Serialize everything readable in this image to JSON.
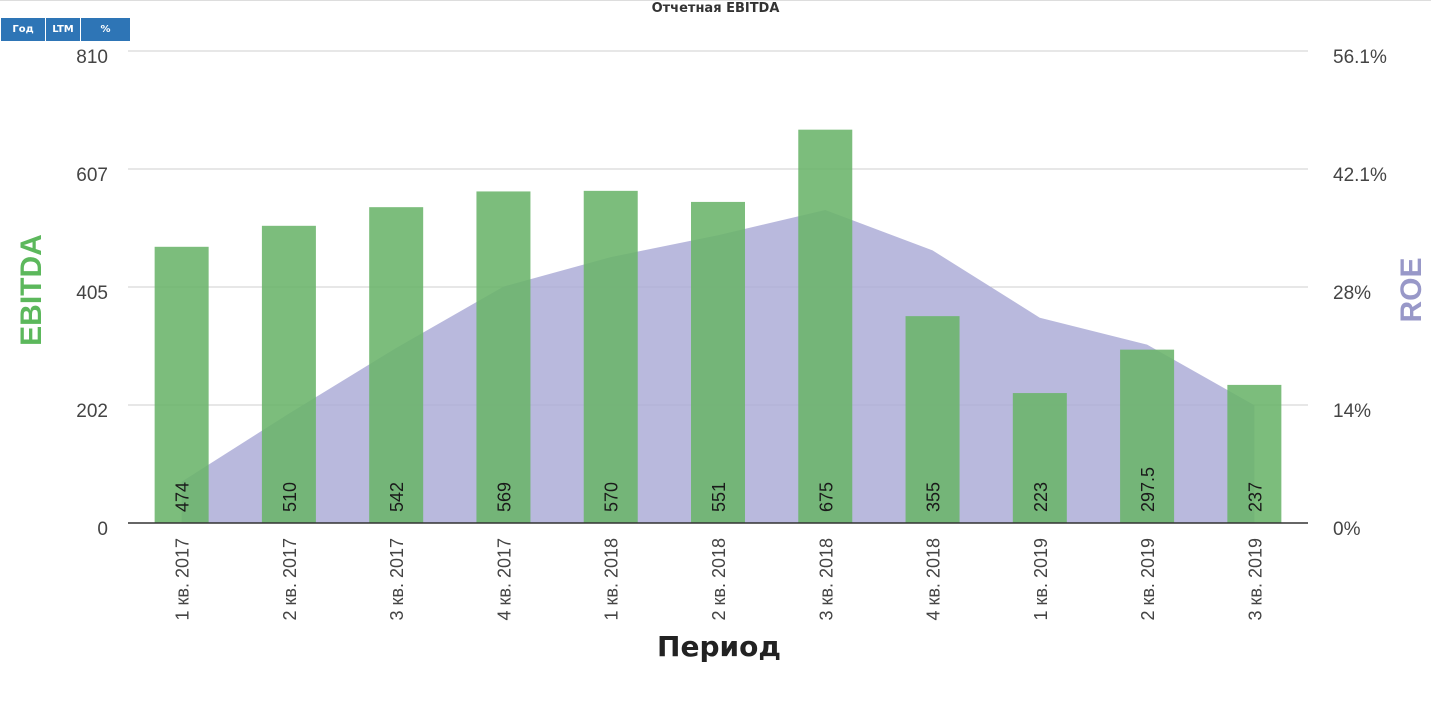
{
  "tabs": [
    {
      "label": "Год"
    },
    {
      "label": "LTM"
    },
    {
      "label": "%"
    }
  ],
  "colors": {
    "bar": "#6ab46a",
    "area": "#a9a9d6",
    "left_axis_label": "#5cb85c",
    "right_axis_label": "#9898c8",
    "tab_bg": "#2e75b6"
  },
  "chart_data": {
    "type": "bar",
    "title": "Отчетная EBITDA",
    "xlabel": "Период",
    "ylabel": "EBITDA",
    "ylabel_right": "ROE",
    "categories": [
      "1 кв. 2017",
      "2 кв. 2017",
      "3 кв. 2017",
      "4 кв. 2017",
      "1 кв. 2018",
      "2 кв. 2018",
      "3 кв. 2018",
      "4 кв. 2018",
      "1 кв. 2019",
      "2 кв. 2019",
      "3 кв. 2019"
    ],
    "series": [
      {
        "name": "EBITDA",
        "type": "bar",
        "axis": "left",
        "values": [
          474,
          510,
          542,
          569,
          570,
          551,
          675,
          355,
          223,
          297.5,
          237
        ],
        "labels": [
          "474",
          "510",
          "542",
          "569",
          "570",
          "551",
          "675",
          "355",
          "223",
          "297.5",
          "237"
        ]
      },
      {
        "name": "ROE",
        "type": "area",
        "axis": "right",
        "values": [
          4.9,
          13.0,
          20.8,
          28.1,
          31.6,
          34.2,
          37.2,
          32.4,
          24.4,
          21.2,
          14.0
        ]
      }
    ],
    "y_left": {
      "ticks": [
        "0",
        "202",
        "405",
        "607",
        "810"
      ],
      "ylim": [
        0,
        810
      ]
    },
    "y_right": {
      "ticks": [
        "0%",
        "14%",
        "28%",
        "42.1%",
        "56.1%"
      ],
      "ylim": [
        0,
        56.1
      ]
    },
    "grid": true
  }
}
